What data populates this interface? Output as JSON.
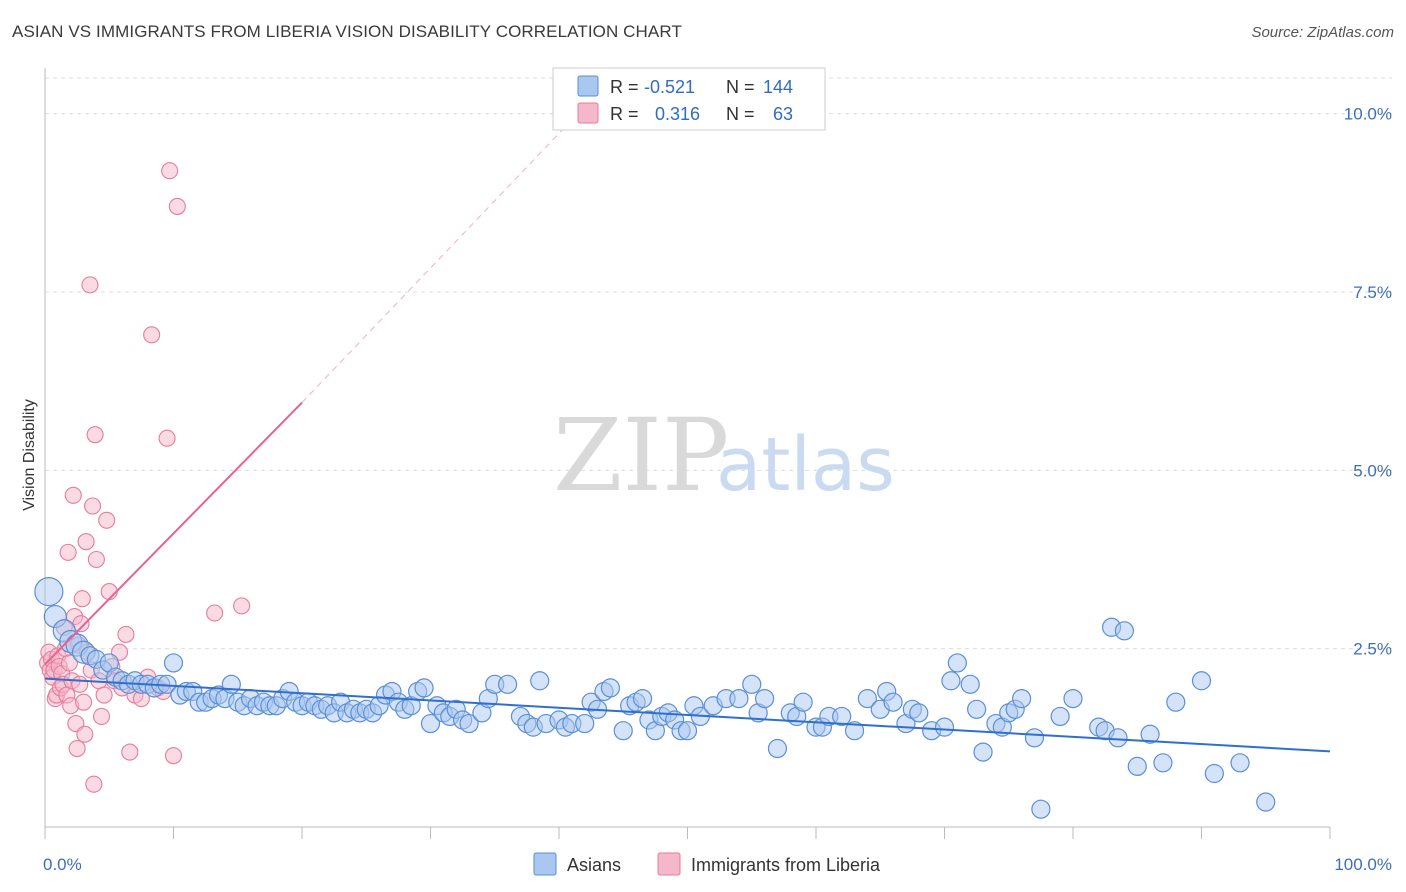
{
  "header": {
    "title": "ASIAN VS IMMIGRANTS FROM LIBERIA VISION DISABILITY CORRELATION CHART",
    "source": "Source: ZipAtlas.com"
  },
  "watermark": {
    "zip": "ZIP",
    "atlas": "atlas"
  },
  "colors": {
    "asian_fill": "#a9c7ef",
    "asian_stroke": "#5b8fd6",
    "asian_line": "#2f6fd0",
    "liberia_fill": "#f5b8ca",
    "liberia_stroke": "#e67c9c",
    "liberia_line": "#e8638f",
    "grid": "#dddddd",
    "axis_label": "#3d6fb8"
  },
  "chart_data": {
    "type": "scatter",
    "title": "ASIAN VS IMMIGRANTS FROM LIBERIA VISION DISABILITY CORRELATION CHART",
    "ylabel": "Vision Disability",
    "xlabel": "",
    "xlim": [
      0,
      100
    ],
    "ylim": [
      0,
      10.5
    ],
    "x_ticks": [
      0,
      10,
      20,
      30,
      40,
      50,
      60,
      70,
      80,
      90,
      100
    ],
    "x_tick_labels": [
      "0.0%",
      "100.0%"
    ],
    "y_ticks": [
      2.5,
      5.0,
      7.5,
      10.0
    ],
    "y_tick_labels": [
      "2.5%",
      "5.0%",
      "7.5%",
      "10.0%"
    ],
    "grid": true,
    "legend_position": "top-center",
    "legend": [
      {
        "r_label": "R =",
        "r_value": "-0.521",
        "n_label": "N =",
        "n_value": "144"
      },
      {
        "r_label": "R =",
        "r_value": "0.316",
        "n_label": "N =",
        "n_value": "63"
      }
    ],
    "bottom_legend": [
      "Asians",
      "Immigrants from Liberia"
    ],
    "series": [
      {
        "name": "Asians",
        "trend": {
          "x": [
            0,
            100
          ],
          "y": [
            2.08,
            1.06
          ]
        },
        "points": [
          [
            0.3,
            3.3
          ],
          [
            0.8,
            2.95
          ],
          [
            1.5,
            2.75
          ],
          [
            2.0,
            2.6
          ],
          [
            2.5,
            2.55
          ],
          [
            3.0,
            2.45
          ],
          [
            3.5,
            2.4
          ],
          [
            4.0,
            2.35
          ],
          [
            4.5,
            2.2
          ],
          [
            5.0,
            2.3
          ],
          [
            5.5,
            2.1
          ],
          [
            6.0,
            2.05
          ],
          [
            6.5,
            2.0
          ],
          [
            7.0,
            2.05
          ],
          [
            7.5,
            2.0
          ],
          [
            8.0,
            2.0
          ],
          [
            8.5,
            1.95
          ],
          [
            9.0,
            2.0
          ],
          [
            9.5,
            2.0
          ],
          [
            10.0,
            2.3
          ],
          [
            10.5,
            1.85
          ],
          [
            11.0,
            1.9
          ],
          [
            11.5,
            1.9
          ],
          [
            12.0,
            1.75
          ],
          [
            12.5,
            1.75
          ],
          [
            13.0,
            1.8
          ],
          [
            13.5,
            1.85
          ],
          [
            14.0,
            1.8
          ],
          [
            14.5,
            2.0
          ],
          [
            15.0,
            1.75
          ],
          [
            15.5,
            1.7
          ],
          [
            16.0,
            1.8
          ],
          [
            16.5,
            1.7
          ],
          [
            17.0,
            1.75
          ],
          [
            17.5,
            1.7
          ],
          [
            18.0,
            1.7
          ],
          [
            18.5,
            1.8
          ],
          [
            19.0,
            1.9
          ],
          [
            19.5,
            1.75
          ],
          [
            20.0,
            1.7
          ],
          [
            20.5,
            1.75
          ],
          [
            21.0,
            1.7
          ],
          [
            21.5,
            1.65
          ],
          [
            22.0,
            1.7
          ],
          [
            22.5,
            1.6
          ],
          [
            23.0,
            1.75
          ],
          [
            23.5,
            1.6
          ],
          [
            24.0,
            1.65
          ],
          [
            24.5,
            1.6
          ],
          [
            25.0,
            1.65
          ],
          [
            25.5,
            1.6
          ],
          [
            26.0,
            1.7
          ],
          [
            26.5,
            1.85
          ],
          [
            27.0,
            1.9
          ],
          [
            27.5,
            1.75
          ],
          [
            28.0,
            1.65
          ],
          [
            28.5,
            1.7
          ],
          [
            29.0,
            1.9
          ],
          [
            29.5,
            1.95
          ],
          [
            30.0,
            1.45
          ],
          [
            30.5,
            1.7
          ],
          [
            31.0,
            1.6
          ],
          [
            31.5,
            1.55
          ],
          [
            32.0,
            1.65
          ],
          [
            32.5,
            1.5
          ],
          [
            33.0,
            1.45
          ],
          [
            34.0,
            1.6
          ],
          [
            34.5,
            1.8
          ],
          [
            35.0,
            2.0
          ],
          [
            36.0,
            2.0
          ],
          [
            37.0,
            1.55
          ],
          [
            37.5,
            1.45
          ],
          [
            38.0,
            1.4
          ],
          [
            38.5,
            2.05
          ],
          [
            39.0,
            1.45
          ],
          [
            40.0,
            1.5
          ],
          [
            40.5,
            1.4
          ],
          [
            41.0,
            1.45
          ],
          [
            42.0,
            1.45
          ],
          [
            42.5,
            1.75
          ],
          [
            43.0,
            1.65
          ],
          [
            43.5,
            1.9
          ],
          [
            44.0,
            1.95
          ],
          [
            45.0,
            1.35
          ],
          [
            45.5,
            1.7
          ],
          [
            46.0,
            1.75
          ],
          [
            46.5,
            1.8
          ],
          [
            47.0,
            1.5
          ],
          [
            47.5,
            1.35
          ],
          [
            48.0,
            1.55
          ],
          [
            48.5,
            1.6
          ],
          [
            49.0,
            1.5
          ],
          [
            49.5,
            1.35
          ],
          [
            50.0,
            1.35
          ],
          [
            50.5,
            1.7
          ],
          [
            51.0,
            1.55
          ],
          [
            52.0,
            1.7
          ],
          [
            53.0,
            1.8
          ],
          [
            54.0,
            1.8
          ],
          [
            55.0,
            2.0
          ],
          [
            55.5,
            1.6
          ],
          [
            56.0,
            1.8
          ],
          [
            57.0,
            1.1
          ],
          [
            58.0,
            1.6
          ],
          [
            58.5,
            1.55
          ],
          [
            59.0,
            1.75
          ],
          [
            60.0,
            1.4
          ],
          [
            60.5,
            1.4
          ],
          [
            61.0,
            1.55
          ],
          [
            62.0,
            1.55
          ],
          [
            63.0,
            1.35
          ],
          [
            64.0,
            1.8
          ],
          [
            65.0,
            1.65
          ],
          [
            65.5,
            1.9
          ],
          [
            66.0,
            1.75
          ],
          [
            67.0,
            1.45
          ],
          [
            67.5,
            1.65
          ],
          [
            68.0,
            1.6
          ],
          [
            69.0,
            1.35
          ],
          [
            70.0,
            1.4
          ],
          [
            70.5,
            2.05
          ],
          [
            71.0,
            2.3
          ],
          [
            72.0,
            2.0
          ],
          [
            72.5,
            1.65
          ],
          [
            73.0,
            1.05
          ],
          [
            74.0,
            1.45
          ],
          [
            74.5,
            1.4
          ],
          [
            75.0,
            1.6
          ],
          [
            75.5,
            1.65
          ],
          [
            76.0,
            1.8
          ],
          [
            77.0,
            1.25
          ],
          [
            77.5,
            0.25
          ],
          [
            79.0,
            1.55
          ],
          [
            80.0,
            1.8
          ],
          [
            82.0,
            1.4
          ],
          [
            82.5,
            1.35
          ],
          [
            83.0,
            2.8
          ],
          [
            83.5,
            1.25
          ],
          [
            84.0,
            2.75
          ],
          [
            85.0,
            0.85
          ],
          [
            86.0,
            1.3
          ],
          [
            87.0,
            0.9
          ],
          [
            88.0,
            1.75
          ],
          [
            90.0,
            2.05
          ],
          [
            91.0,
            0.75
          ],
          [
            93.0,
            0.9
          ],
          [
            95.0,
            0.35
          ]
        ]
      },
      {
        "name": "Immigrants from Liberia",
        "trend": {
          "x": [
            0,
            20
          ],
          "y": [
            2.28,
            5.95
          ],
          "dashed_to": {
            "x": [
              20,
              42
            ],
            "y": [
              5.95,
              10.1
            ]
          }
        },
        "points": [
          [
            0.2,
            2.3
          ],
          [
            0.3,
            2.45
          ],
          [
            0.4,
            2.2
          ],
          [
            0.5,
            2.35
          ],
          [
            0.6,
            2.1
          ],
          [
            0.7,
            2.2
          ],
          [
            0.8,
            1.8
          ],
          [
            0.9,
            1.85
          ],
          [
            1.0,
            2.4
          ],
          [
            1.1,
            2.25
          ],
          [
            1.2,
            1.95
          ],
          [
            1.3,
            2.15
          ],
          [
            1.4,
            2.0
          ],
          [
            1.5,
            2.8
          ],
          [
            1.6,
            2.5
          ],
          [
            1.7,
            1.85
          ],
          [
            1.8,
            3.85
          ],
          [
            1.9,
            2.3
          ],
          [
            2.0,
            1.7
          ],
          [
            2.1,
            2.05
          ],
          [
            2.2,
            4.65
          ],
          [
            2.3,
            2.95
          ],
          [
            2.4,
            1.45
          ],
          [
            2.5,
            1.1
          ],
          [
            2.6,
            2.55
          ],
          [
            2.7,
            2.0
          ],
          [
            2.8,
            2.85
          ],
          [
            2.9,
            3.2
          ],
          [
            3.0,
            1.75
          ],
          [
            3.1,
            1.3
          ],
          [
            3.2,
            4.0
          ],
          [
            3.3,
            2.45
          ],
          [
            3.5,
            7.6
          ],
          [
            3.6,
            2.2
          ],
          [
            3.7,
            4.5
          ],
          [
            3.8,
            0.6
          ],
          [
            3.9,
            5.5
          ],
          [
            4.0,
            3.75
          ],
          [
            4.2,
            2.05
          ],
          [
            4.4,
            1.55
          ],
          [
            4.6,
            1.85
          ],
          [
            4.8,
            4.3
          ],
          [
            5.0,
            3.3
          ],
          [
            5.2,
            2.25
          ],
          [
            5.4,
            2.05
          ],
          [
            5.8,
            2.45
          ],
          [
            6.0,
            1.95
          ],
          [
            6.3,
            2.7
          ],
          [
            6.6,
            1.05
          ],
          [
            7.0,
            1.85
          ],
          [
            7.5,
            1.8
          ],
          [
            8.0,
            2.1
          ],
          [
            8.3,
            6.9
          ],
          [
            8.8,
            1.95
          ],
          [
            9.2,
            1.9
          ],
          [
            9.5,
            5.45
          ],
          [
            9.7,
            9.2
          ],
          [
            10.0,
            1.0
          ],
          [
            10.3,
            8.7
          ],
          [
            13.2,
            3.0
          ],
          [
            15.3,
            3.1
          ]
        ]
      }
    ]
  }
}
